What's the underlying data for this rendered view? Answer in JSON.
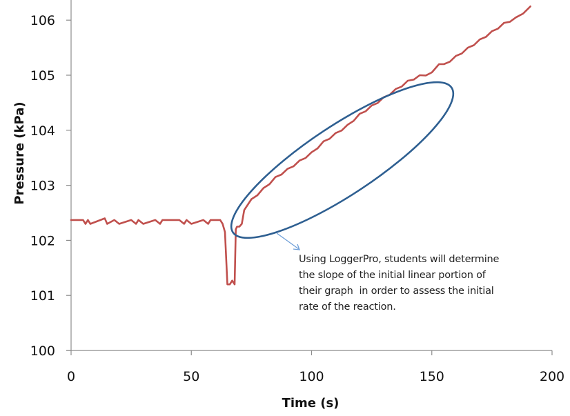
{
  "chart_data": {
    "type": "line",
    "title": "",
    "xlabel": "Time (s)",
    "ylabel": "Pressure (kPa)",
    "xlim": [
      0,
      200
    ],
    "ylim": [
      100,
      106.3
    ],
    "x_ticks": [
      0,
      50,
      100,
      150,
      200
    ],
    "y_ticks": [
      100,
      101,
      102,
      103,
      104,
      105,
      106
    ],
    "grid": false,
    "legend": null,
    "series": [
      {
        "name": "Pressure",
        "color": "#c0504d",
        "x": [
          0,
          5,
          6,
          7,
          8,
          14,
          15,
          18,
          20,
          25,
          27,
          28,
          30,
          35,
          37,
          38,
          40,
          45,
          47,
          48,
          50,
          55,
          57,
          58,
          60,
          62,
          63,
          64,
          65,
          66,
          67,
          68,
          68.5,
          69,
          70,
          71,
          72,
          75,
          80,
          85,
          90,
          95,
          100,
          105,
          110,
          115,
          120,
          125,
          130,
          135,
          140,
          145,
          150,
          153,
          155,
          160,
          165,
          170,
          175,
          180,
          185,
          191
        ],
        "values": [
          102.37,
          102.37,
          102.3,
          102.37,
          102.3,
          102.4,
          102.3,
          102.37,
          102.3,
          102.37,
          102.3,
          102.37,
          102.3,
          102.37,
          102.3,
          102.37,
          102.37,
          102.37,
          102.3,
          102.37,
          102.3,
          102.37,
          102.3,
          102.37,
          102.37,
          102.37,
          102.3,
          102.15,
          101.2,
          101.2,
          101.27,
          101.2,
          102.2,
          102.25,
          102.25,
          102.3,
          102.55,
          102.75,
          102.95,
          103.15,
          103.3,
          103.45,
          103.6,
          103.8,
          103.95,
          104.1,
          104.3,
          104.45,
          104.6,
          104.75,
          104.9,
          105.0,
          105.05,
          105.2,
          105.2,
          105.35,
          105.5,
          105.65,
          105.8,
          105.95,
          106.05,
          106.25
        ]
      }
    ],
    "annotations": [
      {
        "type": "ellipse",
        "color": "#2e5f91",
        "description": "Encircles initial linear portion of curve, approx t=69 to t=155 s"
      },
      {
        "type": "arrow",
        "color": "#6f9fd8",
        "text": "Using LoggerPro, students will determine the slope of the initial linear portion of their graph  in order to assess the initial rate of the reaction."
      }
    ]
  },
  "annotation": {
    "lines": [
      "Using LoggerPro, students will determine",
      "the slope of the initial linear portion of",
      "their graph  in order to assess the initial",
      "rate of the reaction."
    ]
  },
  "axes": {
    "x_title": "Time (s)",
    "y_title": "Pressure (kPa)",
    "x_tick_labels": [
      "0",
      "50",
      "100",
      "150",
      "200"
    ],
    "y_tick_labels": [
      "100",
      "101",
      "102",
      "103",
      "104",
      "105",
      "106"
    ]
  },
  "colors": {
    "series": "#c0504d",
    "ellipse": "#2e5f91",
    "arrow": "#6f9fd8",
    "axis": "#8c8c8c"
  }
}
